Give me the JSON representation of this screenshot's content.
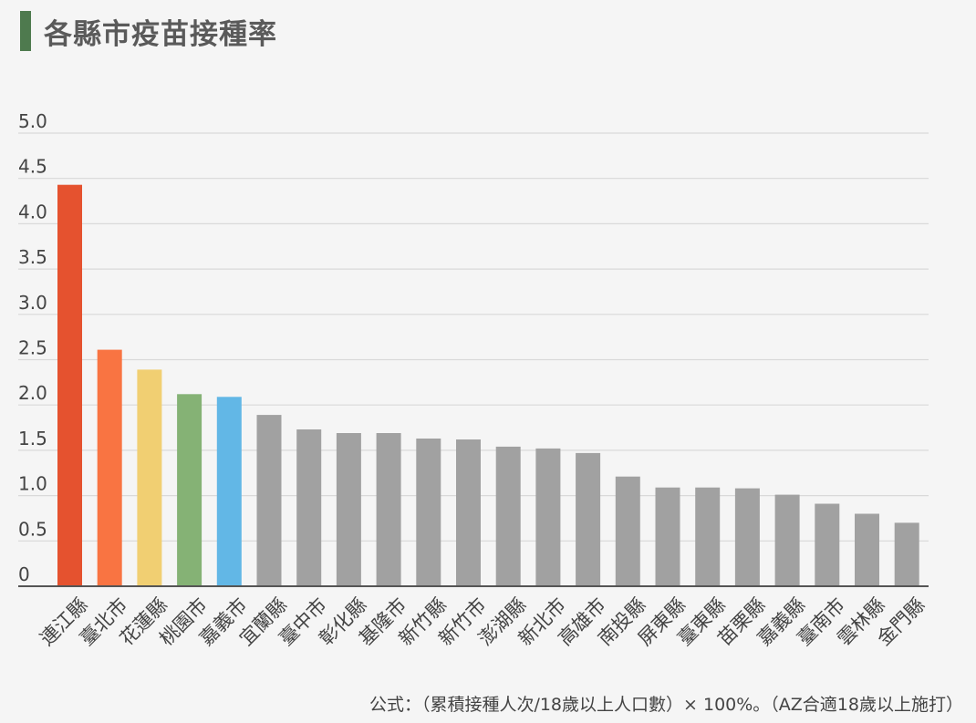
{
  "header": {
    "title": "各縣市疫苗接種率"
  },
  "footnote": "公式：（累積接種人次/18歲以上人口數）× 100%。（AZ合適18歲以上施打）",
  "colors": {
    "accent_bar": "#4e7a4e",
    "gray": "#a1a1a1",
    "grid": "#d9d9d9",
    "axis": "#555555",
    "tick_text": "#444444"
  },
  "chart_data": {
    "type": "bar",
    "categories": [
      "連江縣",
      "臺北市",
      "花蓮縣",
      "桃園市",
      "嘉義市",
      "宜蘭縣",
      "臺中市",
      "彰化縣",
      "基隆市",
      "新竹縣",
      "新竹市",
      "澎湖縣",
      "新北市",
      "高雄市",
      "南投縣",
      "屏東縣",
      "臺東縣",
      "苗栗縣",
      "嘉義縣",
      "臺南市",
      "雲林縣",
      "金門縣"
    ],
    "values": [
      4.43,
      2.61,
      2.39,
      2.12,
      2.09,
      1.89,
      1.73,
      1.69,
      1.69,
      1.63,
      1.62,
      1.54,
      1.52,
      1.47,
      1.21,
      1.09,
      1.09,
      1.08,
      1.01,
      0.91,
      0.8,
      0.7
    ],
    "colors": [
      "#e5522f",
      "#f97442",
      "#f1cf72",
      "#85b275",
      "#62b7e6",
      "#a1a1a1",
      "#a1a1a1",
      "#a1a1a1",
      "#a1a1a1",
      "#a1a1a1",
      "#a1a1a1",
      "#a1a1a1",
      "#a1a1a1",
      "#a1a1a1",
      "#a1a1a1",
      "#a1a1a1",
      "#a1a1a1",
      "#a1a1a1",
      "#a1a1a1",
      "#a1a1a1",
      "#a1a1a1",
      "#a1a1a1"
    ],
    "yticks": [
      "0",
      "0.5",
      "1.0",
      "1.5",
      "2.0",
      "2.5",
      "3.0",
      "3.5",
      "4.0",
      "4.5",
      "5.0"
    ],
    "ylim": [
      0,
      5
    ],
    "grid": true,
    "legend": "none"
  }
}
